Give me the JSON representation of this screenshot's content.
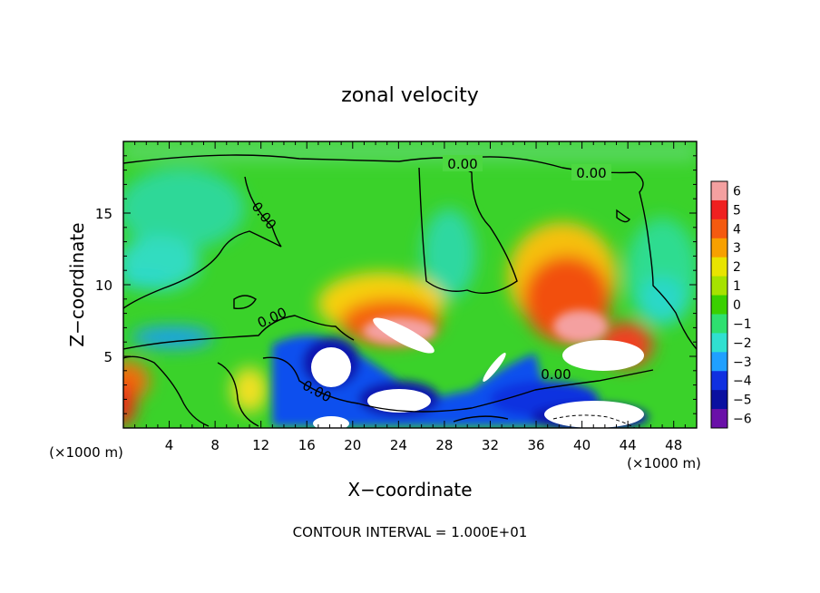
{
  "chart_data": {
    "type": "heatmap",
    "title": "zonal velocity",
    "xlabel": "X−coordinate",
    "ylabel": "Z−coordinate",
    "x_unit_left": "(×1000 m)",
    "x_unit_right": "(×1000 m)",
    "footer": "CONTOUR INTERVAL = 1.000E+01",
    "xlim": [
      0,
      50
    ],
    "ylim": [
      0,
      20
    ],
    "x_ticks": [
      4,
      8,
      12,
      16,
      20,
      24,
      28,
      32,
      36,
      40,
      44,
      48
    ],
    "x_tick_labels": [
      "4",
      "8",
      "12",
      "16",
      "20",
      "24",
      "28",
      "32",
      "36",
      "40",
      "44",
      "48"
    ],
    "y_ticks": [
      5,
      10,
      15
    ],
    "y_tick_labels": [
      "5",
      "10",
      "15"
    ],
    "contour_labels": [
      "0.00",
      "0.00",
      "0.00",
      "0.00",
      "0.00",
      "0.00"
    ],
    "colorbar": {
      "min": -6,
      "max": 6,
      "labels": [
        "6",
        "5",
        "4",
        "3",
        "2",
        "1",
        "0",
        "−1",
        "−2",
        "−3",
        "−4",
        "−5",
        "−6"
      ],
      "colors": [
        "#f4a0a0",
        "#ef2020",
        "#f45a10",
        "#f7a000",
        "#e8e400",
        "#a6e200",
        "#3ad000",
        "#2ee070",
        "#30e0d0",
        "#20a0ff",
        "#1030e0",
        "#0a10a0",
        "#6a10a8"
      ]
    },
    "grid": false
  }
}
